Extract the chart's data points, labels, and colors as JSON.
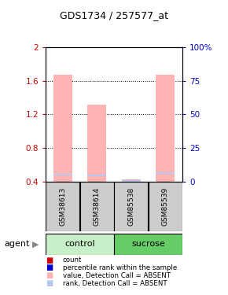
{
  "title": "GDS1734 / 257577_at",
  "samples": [
    "GSM38613",
    "GSM38614",
    "GSM85538",
    "GSM85539"
  ],
  "groups": [
    {
      "name": "control",
      "indices": [
        0,
        1
      ]
    },
    {
      "name": "sucrose",
      "indices": [
        2,
        3
      ]
    }
  ],
  "group_label": "agent",
  "ylim_left": [
    0.4,
    2.0
  ],
  "ylim_right": [
    0,
    100
  ],
  "yticks_left": [
    0.4,
    0.8,
    1.2,
    1.6,
    2.0
  ],
  "yticks_right": [
    0,
    25,
    50,
    75,
    100
  ],
  "ytick_labels_left": [
    "0.4",
    "0.8",
    "1.2",
    "1.6",
    "2"
  ],
  "ytick_labels_right": [
    "0",
    "25",
    "50",
    "75",
    "100%"
  ],
  "bar_values": [
    1.67,
    1.32,
    0.42,
    1.67
  ],
  "rank_values": [
    0.48,
    0.47,
    0.405,
    0.5
  ],
  "bar_color_absent": "#ffb3b3",
  "rank_color_absent": "#b3c8f0",
  "bar_width": 0.55,
  "legend": [
    {
      "color": "#cc0000",
      "label": "count"
    },
    {
      "color": "#0000cc",
      "label": "percentile rank within the sample"
    },
    {
      "color": "#ffb3b3",
      "label": "value, Detection Call = ABSENT"
    },
    {
      "color": "#b3c8f0",
      "label": "rank, Detection Call = ABSENT"
    }
  ],
  "background_color": "#ffffff",
  "left_axis_color": "#cc0000",
  "right_axis_color": "#0000cc",
  "sample_box_color": "#cccccc",
  "group_box_color_control": "#c8f0c8",
  "group_box_color_sucrose": "#66cc66"
}
